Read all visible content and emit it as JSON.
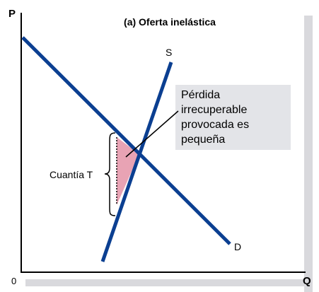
{
  "title": "(a) Oferta inelástica",
  "axis_labels": {
    "y": "P",
    "x": "Q",
    "origin": "0"
  },
  "curve_labels": {
    "supply": "S",
    "demand": "D"
  },
  "tax_label": "Cuantía T",
  "callout": {
    "lines": [
      "Pérdida",
      "irrecuperable",
      "provocada es",
      "pequeña"
    ]
  },
  "colors": {
    "curves": "#0b3f91",
    "deadweight_fill": "#e8a3b4",
    "callout_bg": "#e3e4e8",
    "shadow": "#d9d9dd",
    "text": "#000000"
  }
}
